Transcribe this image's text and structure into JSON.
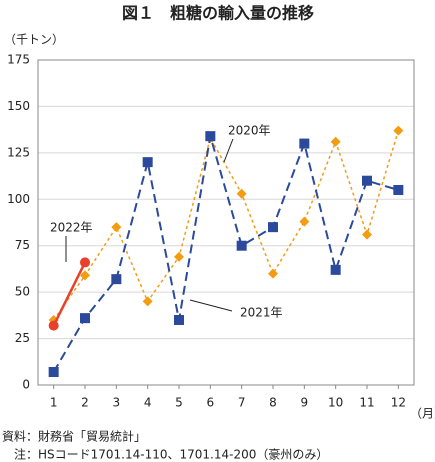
{
  "chart_data": {
    "type": "line",
    "title": "図１　粗糖の輸入量の推移",
    "y_unit": "（千トン）",
    "x_unit": "（月）",
    "x": [
      1,
      2,
      3,
      4,
      5,
      6,
      7,
      8,
      9,
      10,
      11,
      12
    ],
    "xlim": [
      0.5,
      12.5
    ],
    "xticks": [
      1,
      2,
      3,
      4,
      5,
      6,
      7,
      8,
      9,
      10,
      11,
      12
    ],
    "ylim": [
      0,
      175
    ],
    "yticks": [
      0,
      25,
      50,
      75,
      100,
      125,
      150,
      175
    ],
    "grid": true,
    "series": [
      {
        "name": "2020年",
        "color": "#f39c12",
        "linestyle": "dotted",
        "marker": "diamond",
        "values": [
          35,
          59,
          85,
          45,
          69,
          133,
          103,
          60,
          88,
          131,
          81,
          137
        ]
      },
      {
        "name": "2021年",
        "color": "#2b4a9b",
        "linestyle": "dashed",
        "marker": "square",
        "values": [
          7,
          36,
          57,
          120,
          35,
          134,
          75,
          85,
          130,
          62,
          110,
          105
        ]
      },
      {
        "name": "2022年",
        "color": "#e8402a",
        "linestyle": "solid",
        "marker": "circle",
        "values": [
          32,
          66,
          null,
          null,
          null,
          null,
          null,
          null,
          null,
          null,
          null,
          null
        ]
      }
    ],
    "notes": [
      "資料：財務省「貿易統計」",
      "　注：HSコード1701.14-110、1701.14-200（豪州のみ）"
    ]
  }
}
